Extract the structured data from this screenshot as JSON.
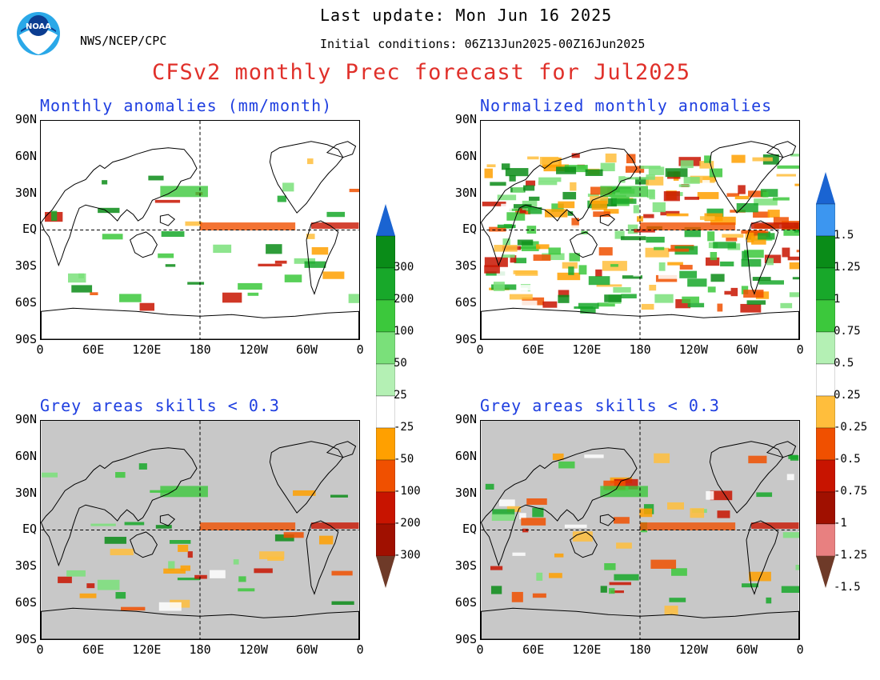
{
  "header": {
    "last_update": "Last update: Mon Jun 16 2025",
    "agency": "NWS/NCEP/CPC",
    "initial_conditions": "Initial conditions: 06Z13Jun2025-00Z16Jun2025",
    "title": "CFSv2 monthly Prec forecast for Jul2025",
    "logo_text": "NOAA"
  },
  "panels": [
    {
      "id": "top-left",
      "title": "Monthly anomalies (mm/month)",
      "background": "#ffffff"
    },
    {
      "id": "top-right",
      "title": "Normalized monthly anomalies",
      "background": "#ffffff"
    },
    {
      "id": "bottom-left",
      "title": "Grey areas skills < 0.3",
      "background": "#c8c8c8"
    },
    {
      "id": "bottom-right",
      "title": "Grey areas skills < 0.3",
      "background": "#c8c8c8"
    }
  ],
  "axes": {
    "lat_labels": [
      "90N",
      "60N",
      "30N",
      "EQ",
      "30S",
      "60S",
      "90S"
    ],
    "lon_labels": [
      "0",
      "60E",
      "120E",
      "180",
      "120W",
      "60W",
      "0"
    ]
  },
  "colorbar_left": {
    "labels": [
      "300",
      "200",
      "100",
      "50",
      "25",
      "-25",
      "-50",
      "-100",
      "-200",
      "-300"
    ],
    "colors": [
      "#1a64d2",
      "#0a8c18",
      "#18a82a",
      "#3cc83c",
      "#7ae07a",
      "#b4f0b4",
      "#ffffff",
      "#ffa000",
      "#f05000",
      "#c81400",
      "#a01000",
      "#6e3a28"
    ]
  },
  "colorbar_right": {
    "labels": [
      "1.5",
      "1.25",
      "1",
      "0.75",
      "0.5",
      "0.25",
      "-0.25",
      "-0.5",
      "-0.75",
      "-1",
      "-1.25",
      "-1.5"
    ],
    "colors": [
      "#1a64d2",
      "#3c96f0",
      "#0a8c18",
      "#18a82a",
      "#3cc83c",
      "#b4f0b4",
      "#ffffff",
      "#ffbe3c",
      "#f05000",
      "#c81400",
      "#a01000",
      "#e88080",
      "#6e3a28"
    ]
  }
}
